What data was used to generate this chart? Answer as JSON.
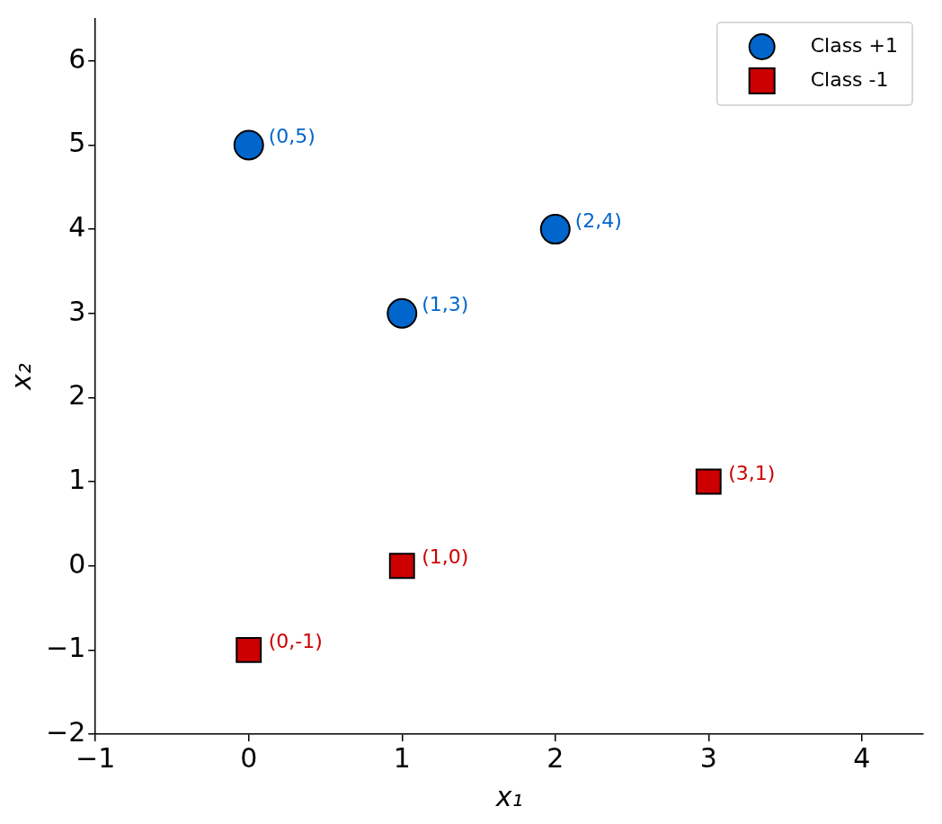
{
  "chart_data": {
    "type": "scatter",
    "xlabel": "x₁",
    "ylabel": "x₂",
    "xlim": [
      -1,
      4.4
    ],
    "xticks": [
      -1,
      0,
      1,
      2,
      3,
      4
    ],
    "ylim": [
      -2,
      6.5
    ],
    "yticks": [
      -2,
      -1,
      0,
      1,
      2,
      3,
      4,
      5,
      6
    ],
    "grid": false,
    "legend": "top right",
    "series": [
      {
        "name": "Class +1",
        "color": "#0066cc",
        "marker": "circle",
        "x": [
          0,
          1,
          2
        ],
        "values": [
          5,
          3,
          4
        ]
      },
      {
        "name": "Class -1",
        "color": "#cc0000",
        "marker": "square",
        "x": [
          0,
          1,
          3
        ],
        "values": [
          -1,
          0,
          1
        ]
      }
    ],
    "annotations": [
      {
        "text": "(0,5)",
        "x": 0,
        "y": 5
      },
      {
        "text": "(1,3)",
        "x": 1,
        "y": 3
      },
      {
        "text": "(2,4)",
        "x": 2,
        "y": 4
      },
      {
        "text": "(0,-1)",
        "x": 0,
        "y": -1
      },
      {
        "text": "(1,0)",
        "x": 1,
        "y": 0
      },
      {
        "text": "(3,1)",
        "x": 3,
        "y": 1
      }
    ]
  }
}
